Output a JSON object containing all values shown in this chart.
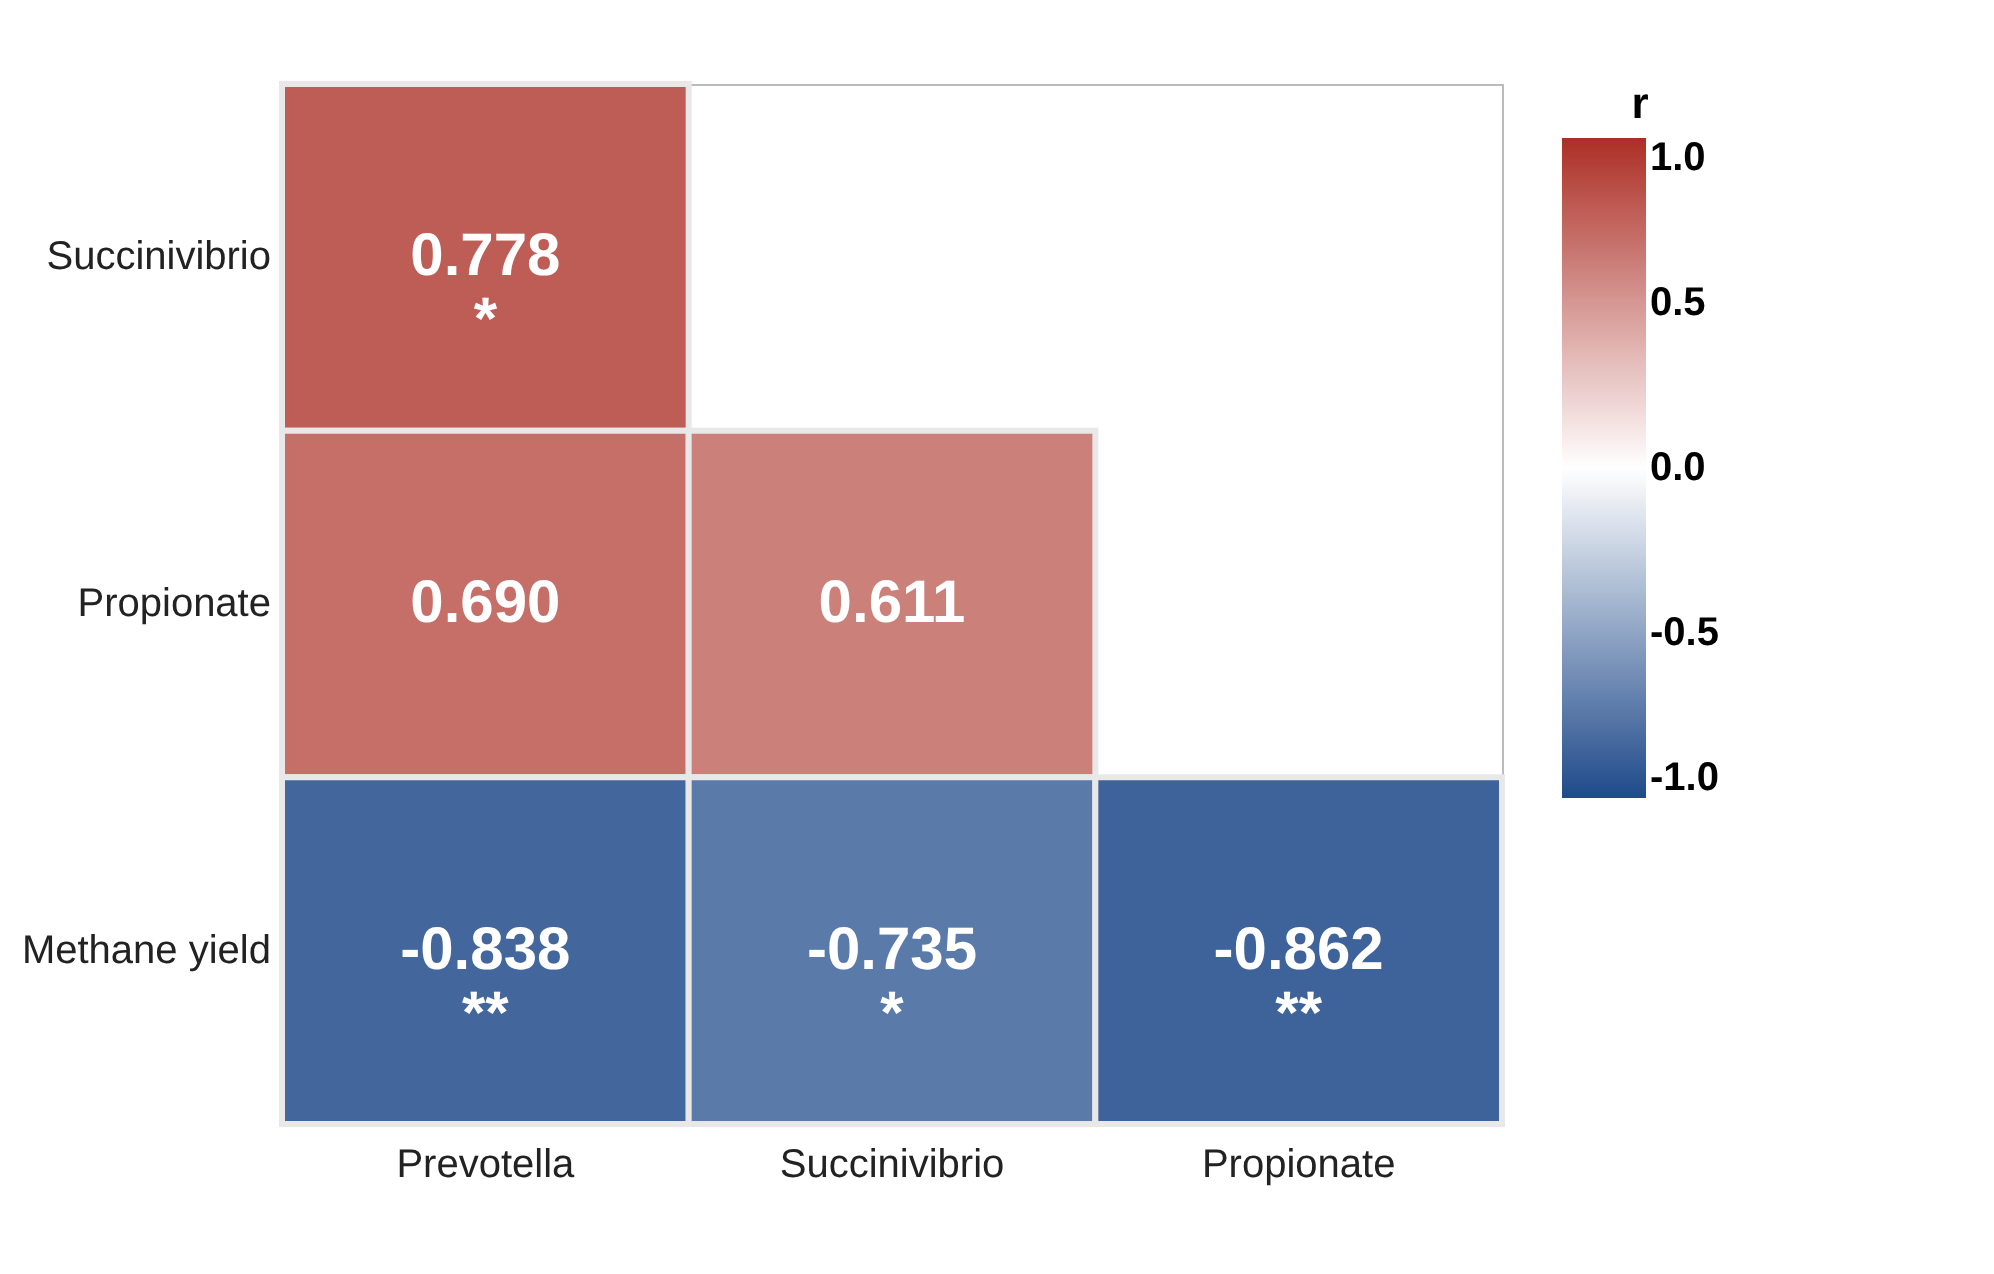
{
  "chart_data": {
    "type": "heatmap",
    "categories": [
      "Prevotella",
      "Succinivibrio",
      "Propionate"
    ],
    "y_categories": [
      "Succinivibrio",
      "Propionate",
      "Methane yield"
    ],
    "cells": [
      [
        0.778,
        null,
        null
      ],
      [
        0.69,
        0.611,
        null
      ],
      [
        -0.838,
        -0.735,
        -0.862
      ]
    ],
    "cell_labels": [
      [
        "0.778\n*",
        null,
        null
      ],
      [
        "0.690",
        "0.611",
        null
      ],
      [
        "-0.838\n**",
        "-0.735\n*",
        "-0.862\n**"
      ]
    ],
    "clabel": "r",
    "clim": [
      -1,
      1
    ],
    "cticks": [
      {
        "value": 1,
        "label": "1.0"
      },
      {
        "value": 0.5,
        "label": "0.5"
      },
      {
        "value": 0,
        "label": "0.0"
      },
      {
        "value": -0.5,
        "label": "-0.5"
      },
      {
        "value": -1,
        "label": "-1.0"
      }
    ]
  }
}
